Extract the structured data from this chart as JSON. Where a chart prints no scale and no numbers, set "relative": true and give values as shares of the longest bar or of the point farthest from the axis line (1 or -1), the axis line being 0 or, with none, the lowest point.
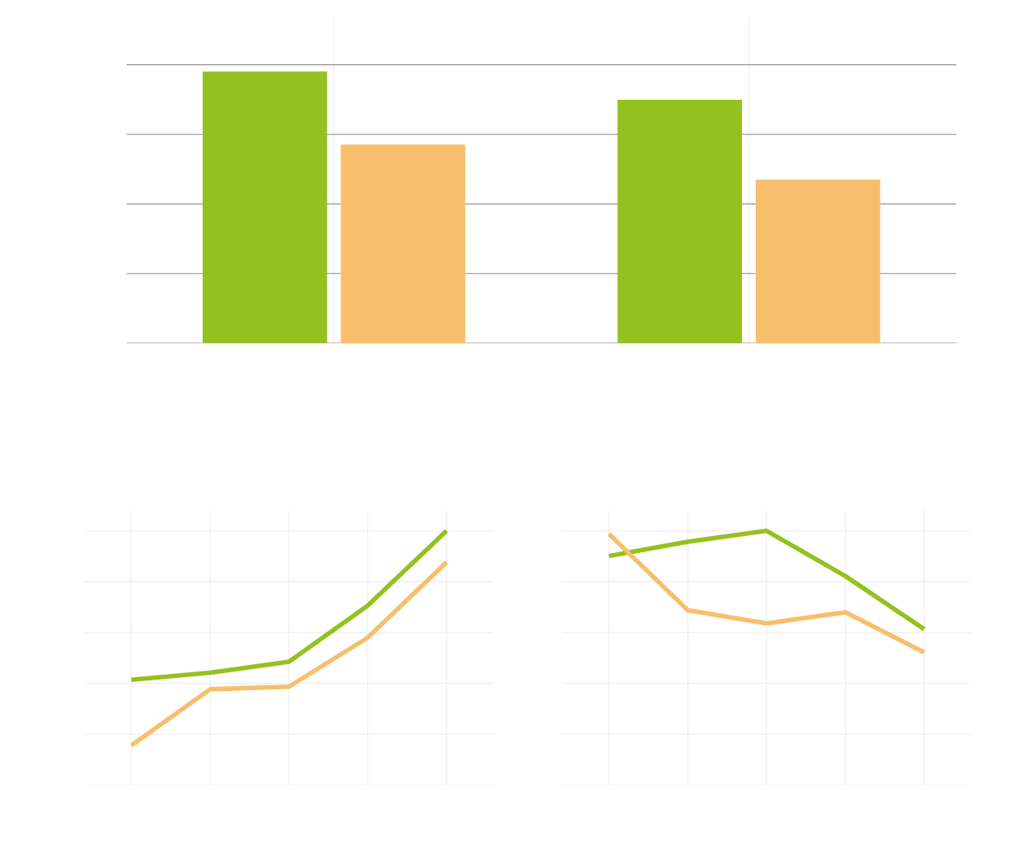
{
  "chart_data": [
    {
      "type": "bar",
      "relative": true,
      "categories": [
        null,
        null
      ],
      "grid": true,
      "tick_labels": false,
      "series": [
        {
          "color": "#95c11f",
          "values": [
            1,
            0.896
          ]
        },
        {
          "color": "#f7bf6d",
          "values": [
            0.731,
            0.602
          ]
        }
      ]
    },
    {
      "type": "line",
      "relative": true,
      "categories": [
        null,
        null,
        null,
        null,
        null
      ],
      "grid": true,
      "tick_labels": false,
      "marker": "none",
      "line_style": "solid",
      "series": [
        {
          "color": "#95c11f",
          "values": [
            0.414,
            0.442,
            0.485,
            0.706,
            1
          ]
        },
        {
          "color": "#f7bf6d",
          "values": [
            0.156,
            0.377,
            0.387,
            0.58,
            0.877
          ]
        }
      ]
    },
    {
      "type": "line",
      "relative": true,
      "categories": [
        null,
        null,
        null,
        null,
        null
      ],
      "grid": true,
      "tick_labels": false,
      "marker": "none",
      "line_style": "solid",
      "series": [
        {
          "color": "#95c11f",
          "values": [
            0.901,
            0.957,
            1,
            0.822,
            0.613
          ]
        },
        {
          "color": "#f7bf6d",
          "values": [
            0.988,
            0.688,
            0.636,
            0.68,
            0.522
          ]
        }
      ]
    }
  ]
}
